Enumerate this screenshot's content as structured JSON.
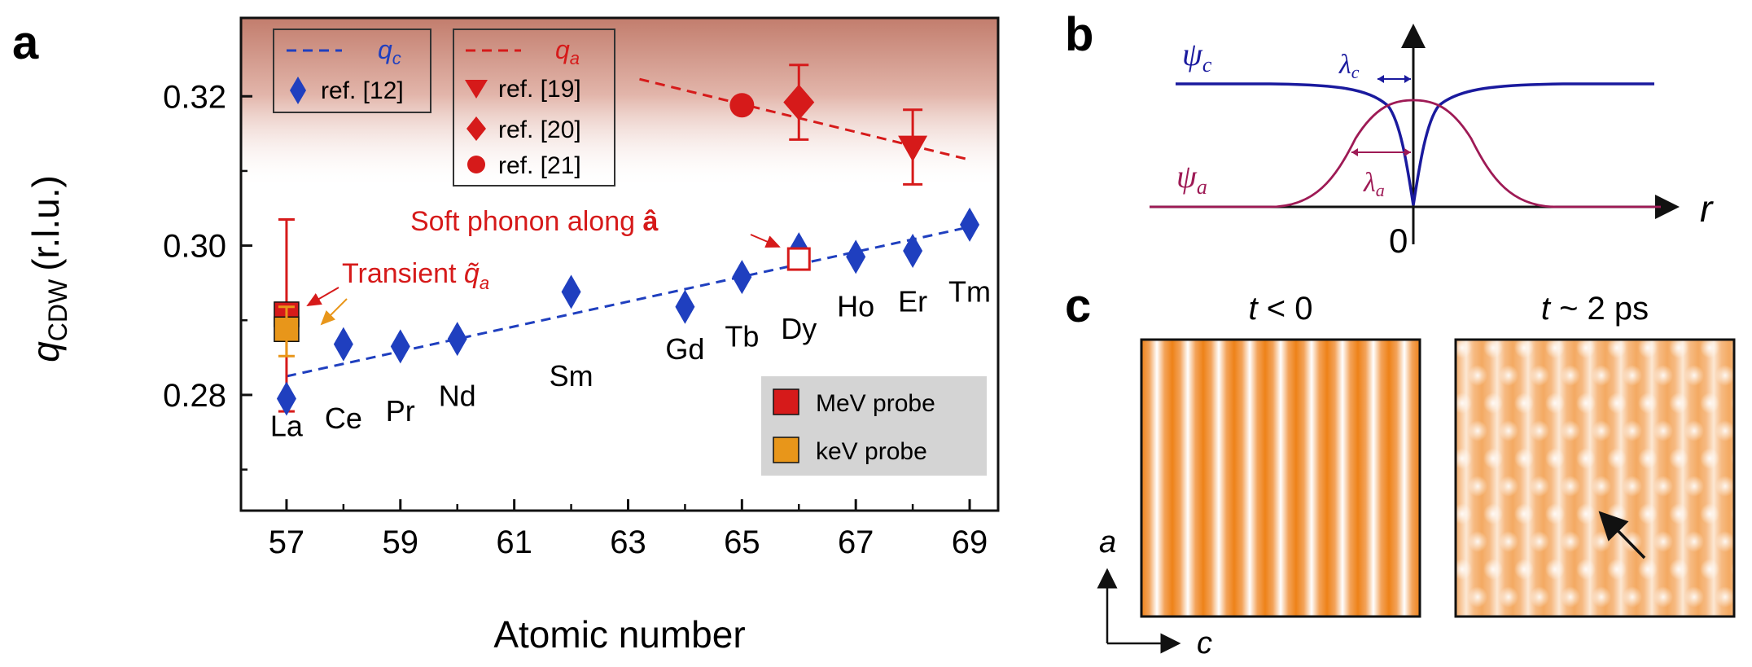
{
  "chart_data": [
    {
      "panel": "a",
      "type": "scatter",
      "xlabel": "Atomic number",
      "ylabel_main": "q",
      "ylabel_sub": "CDW",
      "ylabel_unit": "(r.l.u.)",
      "xlim": [
        56.2,
        69.5
      ],
      "ylim": [
        0.2645,
        0.3305
      ],
      "xticks": [
        "57",
        "59",
        "61",
        "63",
        "65",
        "67",
        "69"
      ],
      "yticks": [
        "0.28",
        "0.30",
        "0.32"
      ],
      "background": "gradient top #c28070 fading to white near y=0.308",
      "colors": {
        "blue": "#1f3fbf",
        "red": "#d61a1a",
        "orange": "#e8961a"
      },
      "elements": [
        {
          "label": "La",
          "x": 57,
          "label_y": 0.2745
        },
        {
          "label": "Ce",
          "x": 58,
          "label_y": 0.2755
        },
        {
          "label": "Pr",
          "x": 59,
          "label_y": 0.2765
        },
        {
          "label": "Nd",
          "x": 60,
          "label_y": 0.2785
        },
        {
          "label": "Sm",
          "x": 62,
          "label_y": 0.2812
        },
        {
          "label": "Gd",
          "x": 64,
          "label_y": 0.2848
        },
        {
          "label": "Tb",
          "x": 65,
          "label_y": 0.2865
        },
        {
          "label": "Dy",
          "x": 66,
          "label_y": 0.2875
        },
        {
          "label": "Ho",
          "x": 67,
          "label_y": 0.2905
        },
        {
          "label": "Er",
          "x": 68,
          "label_y": 0.2912
        },
        {
          "label": "Tm",
          "x": 69,
          "label_y": 0.2925
        }
      ],
      "series": [
        {
          "name": "ref. [12]",
          "marker": "diamond",
          "color": "#1f3fbf",
          "x": [
            57,
            58,
            59,
            60,
            62,
            64,
            65,
            66,
            67,
            68,
            69
          ],
          "y": [
            0.2795,
            0.2868,
            0.2865,
            0.2875,
            0.2938,
            0.2918,
            0.2958,
            0.2995,
            0.2985,
            0.2993,
            0.3028
          ]
        },
        {
          "name": "ref. [19]",
          "marker": "triangle-down",
          "color": "#d61a1a",
          "x": [
            68
          ],
          "y": [
            0.3132
          ],
          "err": [
            0.005
          ]
        },
        {
          "name": "ref. [20]",
          "marker": "diamond",
          "color": "#d61a1a",
          "x": [
            66
          ],
          "y": [
            0.3192
          ],
          "err": [
            0.005
          ]
        },
        {
          "name": "ref. [21]",
          "marker": "circle",
          "color": "#d61a1a",
          "x": [
            65
          ],
          "y": [
            0.3188
          ]
        }
      ],
      "fit_lines": [
        {
          "name": "qc",
          "color": "#1f3fbf",
          "x": [
            57,
            69
          ],
          "y": [
            0.2825,
            0.3025
          ]
        },
        {
          "name": "qa",
          "color": "#d61a1a",
          "x": [
            63.2,
            69
          ],
          "y": [
            0.3223,
            0.3115
          ]
        }
      ],
      "transient": [
        {
          "name": "MeV probe",
          "color": "#d61a1a",
          "x": 57,
          "y": 0.2908,
          "err_high": 0.3035,
          "err_low": 0.2778
        },
        {
          "name": "keV probe",
          "color": "#e8961a",
          "x": 57,
          "y": 0.2888,
          "err_high": 0.2918,
          "err_low": 0.2852
        }
      ],
      "soft_phonon_point": {
        "x": 66,
        "y": 0.2982
      },
      "legend": {
        "blue_line": "q",
        "blue_line_sub": "c",
        "blue_marker": "ref. [12]",
        "red_line": "q",
        "red_line_sub": "a",
        "red_items": [
          "ref. [19]",
          "ref. [20]",
          "ref. [21]"
        ],
        "probe_items": [
          "MeV probe",
          "keV probe"
        ]
      },
      "annotations": {
        "soft_phonon": "Soft phonon along ",
        "soft_phonon_vec": "â",
        "transient": "Transient ",
        "transient_sym": "q̃",
        "transient_sub": "a"
      }
    },
    {
      "panel": "b",
      "type": "line",
      "xlabel": "r",
      "origin_label": "0",
      "series": [
        {
          "name": "ψc",
          "color": "#1a1a9e",
          "symbol": "ψ",
          "sub": "c"
        },
        {
          "name": "ψa",
          "color": "#9e1a55",
          "symbol": "ψ",
          "sub": "a"
        }
      ],
      "annotations": [
        {
          "symbol": "λ",
          "sub": "c"
        },
        {
          "symbol": "λ",
          "sub": "a"
        }
      ]
    },
    {
      "panel": "c",
      "type": "heatmap",
      "titles": [
        {
          "pre": "t",
          "post": " < 0"
        },
        {
          "pre": "t",
          "post": " ~ 2 ps"
        }
      ],
      "axis_a": "a",
      "axis_c": "c",
      "colors": {
        "high": "#ffffff",
        "low": "#ee8218"
      }
    }
  ],
  "panel_labels": [
    "a",
    "b",
    "c"
  ]
}
